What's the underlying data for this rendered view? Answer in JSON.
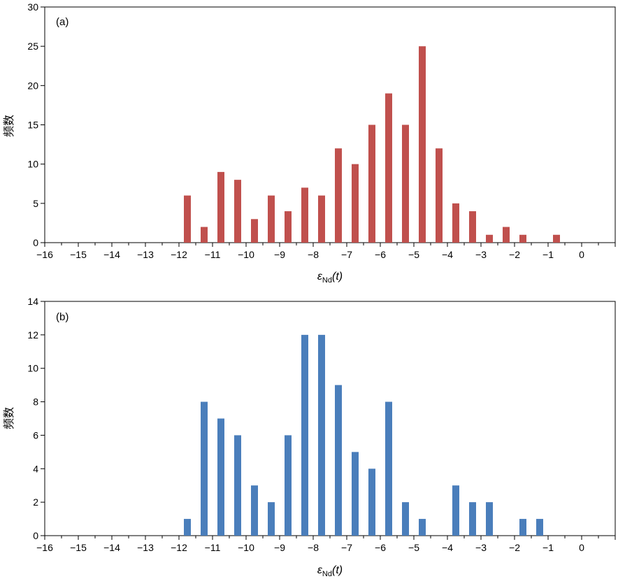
{
  "chart_data": [
    {
      "type": "bar",
      "panel_label": "(a)",
      "color": "#c0504d",
      "xlabel": {
        "main": "ε",
        "sub": "Nd",
        "arg": "(t)"
      },
      "ylabel": "频数",
      "xlim": [
        -16,
        1
      ],
      "ylim": [
        0,
        30
      ],
      "xticks": [
        -16,
        -15,
        -14,
        -13,
        -12,
        -11,
        -10,
        -9,
        -8,
        -7,
        -6,
        -5,
        -4,
        -3,
        -2,
        -1,
        0
      ],
      "xtick_labels": [
        "−16",
        "−15",
        "−14",
        "−13",
        "−12",
        "−11",
        "−10",
        "−9",
        "−8",
        "−7",
        "−6",
        "−5",
        "−4",
        "−3",
        "−2",
        "−1",
        "0"
      ],
      "yticks": [
        0,
        5,
        10,
        15,
        20,
        25,
        30
      ],
      "ytick_labels": [
        "0",
        "5",
        "10",
        "15",
        "20",
        "25",
        "30"
      ],
      "bin_width": 0.5,
      "x": [
        -11.75,
        -11.25,
        -10.75,
        -10.25,
        -9.75,
        -9.25,
        -8.75,
        -8.25,
        -7.75,
        -7.25,
        -6.75,
        -6.25,
        -5.75,
        -5.25,
        -4.75,
        -4.25,
        -3.75,
        -3.25,
        -2.75,
        -2.25,
        -1.75,
        -0.75
      ],
      "values": [
        6,
        2,
        9,
        8,
        3,
        6,
        4,
        7,
        6,
        12,
        10,
        15,
        19,
        15,
        25,
        12,
        5,
        4,
        1,
        2,
        1,
        1
      ]
    },
    {
      "type": "bar",
      "panel_label": "(b)",
      "color": "#4a7ebb",
      "xlabel": {
        "main": "ε",
        "sub": "Nd",
        "arg": "(t)"
      },
      "ylabel": "频数",
      "xlim": [
        -16,
        1
      ],
      "ylim": [
        0,
        14
      ],
      "xticks": [
        -16,
        -15,
        -14,
        -13,
        -12,
        -11,
        -10,
        -9,
        -8,
        -7,
        -6,
        -5,
        -4,
        -3,
        -2,
        -1,
        0
      ],
      "xtick_labels": [
        "−16",
        "−15",
        "−14",
        "−13",
        "−12",
        "−11",
        "−10",
        "−9",
        "−8",
        "−7",
        "−6",
        "−5",
        "−4",
        "−3",
        "−2",
        "−1",
        "0"
      ],
      "yticks": [
        0,
        2,
        4,
        6,
        8,
        10,
        12,
        14
      ],
      "ytick_labels": [
        "0",
        "2",
        "4",
        "6",
        "8",
        "10",
        "12",
        "14"
      ],
      "bin_width": 0.5,
      "x": [
        -11.75,
        -11.25,
        -10.75,
        -10.25,
        -9.75,
        -9.25,
        -8.75,
        -8.25,
        -7.75,
        -7.25,
        -6.75,
        -6.25,
        -5.75,
        -5.25,
        -4.75,
        -3.75,
        -3.25,
        -2.75,
        -1.75,
        -1.25
      ],
      "values": [
        1,
        8,
        7,
        6,
        3,
        2,
        6,
        12,
        12,
        9,
        5,
        4,
        8,
        2,
        1,
        3,
        2,
        2,
        1,
        1
      ]
    }
  ]
}
